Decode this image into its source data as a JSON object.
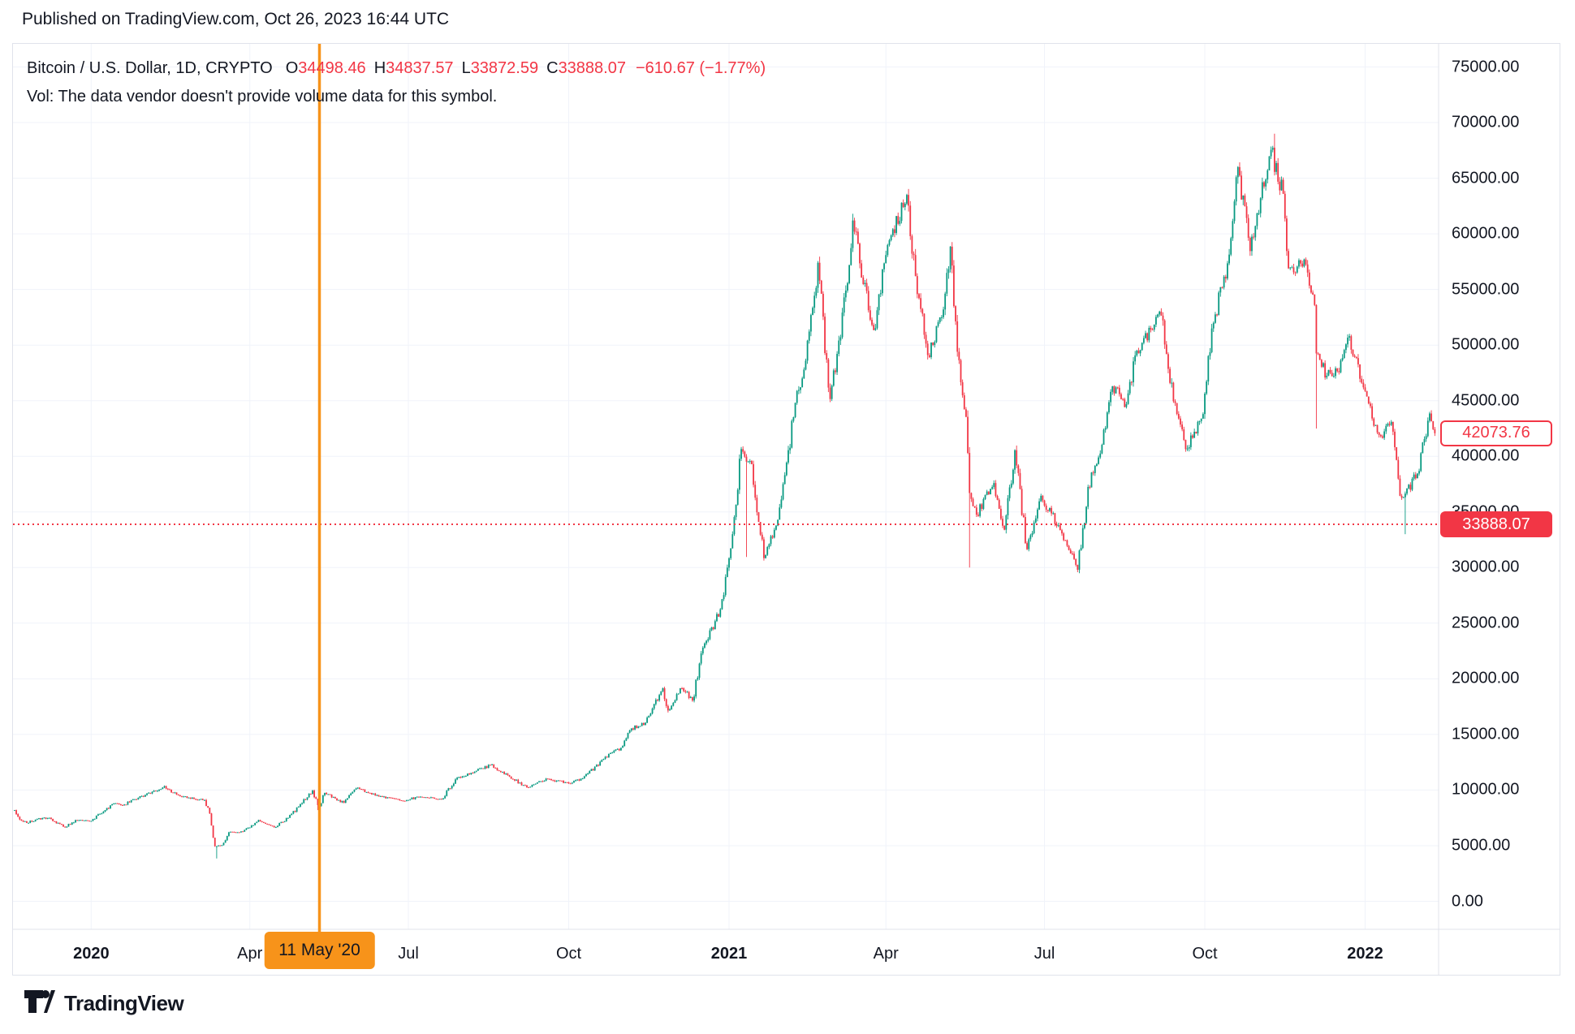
{
  "header": {
    "published": "Published on TradingView.com, Oct 26, 2023 16:44 UTC"
  },
  "legend": {
    "symbol": "Bitcoin / U.S. Dollar, 1D, CRYPTO",
    "open_label": "O",
    "open_value": "34498.46",
    "high_label": "H",
    "high_value": "34837.57",
    "low_label": "L",
    "low_value": "33872.59",
    "close_label": "C",
    "close_value": "33888.07",
    "change_text": "−610.67 (−1.77%)",
    "vol_note": "Vol: The data vendor doesn't provide volume data for this symbol."
  },
  "price_axis": {
    "min": 0,
    "max": 75000,
    "step": 5000,
    "decimals": 2,
    "last_price_label": "33888.07",
    "counter_price_label": "42073.76"
  },
  "time_axis": {
    "ticks": [
      {
        "label": "2020",
        "date": "2020-01-01",
        "bold": true
      },
      {
        "label": "Apr",
        "date": "2020-04-01",
        "bold": false
      },
      {
        "label": "Jul",
        "date": "2020-07-01",
        "bold": false
      },
      {
        "label": "Oct",
        "date": "2020-10-01",
        "bold": false
      },
      {
        "label": "2021",
        "date": "2021-01-01",
        "bold": true
      },
      {
        "label": "Apr",
        "date": "2021-04-01",
        "bold": false
      },
      {
        "label": "Jul",
        "date": "2021-07-01",
        "bold": false
      },
      {
        "label": "Oct",
        "date": "2021-10-01",
        "bold": false
      },
      {
        "label": "2022",
        "date": "2022-01-01",
        "bold": true
      }
    ],
    "event_marker": {
      "label": "11 May '20",
      "date": "2020-05-11"
    }
  },
  "chart_data": {
    "type": "candlestick",
    "title": "Bitcoin / U.S. Dollar",
    "timeframe": "1D",
    "ylim": [
      0,
      75000
    ],
    "grid": true,
    "last_price_line": 33888.07,
    "counter_price": 42073.76,
    "anchors": [
      [
        "2019-11-18",
        8200
      ],
      [
        "2019-11-22",
        7250
      ],
      [
        "2019-11-25",
        7050
      ],
      [
        "2019-12-01",
        7400
      ],
      [
        "2019-12-08",
        7500
      ],
      [
        "2019-12-17",
        6650
      ],
      [
        "2019-12-23",
        7300
      ],
      [
        "2019-12-31",
        7200
      ],
      [
        "2020-01-08",
        8050
      ],
      [
        "2020-01-14",
        8800
      ],
      [
        "2020-01-19",
        8650
      ],
      [
        "2020-01-28",
        9300
      ],
      [
        "2020-02-12",
        10350
      ],
      [
        "2020-02-19",
        9600
      ],
      [
        "2020-02-25",
        9300
      ],
      [
        "2020-03-06",
        9100
      ],
      [
        "2020-03-09",
        7900
      ],
      [
        "2020-03-12",
        4950
      ],
      [
        "2020-03-16",
        5050
      ],
      [
        "2020-03-20",
        6200
      ],
      [
        "2020-03-28",
        6250
      ],
      [
        "2020-04-06",
        7300
      ],
      [
        "2020-04-15",
        6650
      ],
      [
        "2020-04-23",
        7500
      ],
      [
        "2020-04-30",
        8750
      ],
      [
        "2020-05-07",
        9950
      ],
      [
        "2020-05-10",
        8650
      ],
      [
        "2020-05-11",
        8550
      ],
      [
        "2020-05-14",
        9750
      ],
      [
        "2020-05-25",
        8850
      ],
      [
        "2020-06-01",
        10150
      ],
      [
        "2020-06-15",
        9450
      ],
      [
        "2020-06-27",
        9050
      ],
      [
        "2020-07-08",
        9400
      ],
      [
        "2020-07-20",
        9150
      ],
      [
        "2020-07-28",
        10950
      ],
      [
        "2020-08-08",
        11650
      ],
      [
        "2020-08-17",
        12250
      ],
      [
        "2020-08-27",
        11350
      ],
      [
        "2020-09-07",
        10250
      ],
      [
        "2020-09-19",
        11000
      ],
      [
        "2020-10-01",
        10600
      ],
      [
        "2020-10-09",
        11050
      ],
      [
        "2020-10-21",
        12800
      ],
      [
        "2020-10-31",
        13800
      ],
      [
        "2020-11-06",
        15550
      ],
      [
        "2020-11-14",
        16050
      ],
      [
        "2020-11-24",
        19150
      ],
      [
        "2020-11-27",
        17150
      ],
      [
        "2020-12-05",
        19150
      ],
      [
        "2020-12-11",
        18050
      ],
      [
        "2020-12-17",
        22800
      ],
      [
        "2020-12-27",
        26250
      ],
      [
        "2021-01-03",
        33000
      ],
      [
        "2021-01-08",
        40650
      ],
      [
        "2021-01-14",
        39300
      ],
      [
        "2021-01-21",
        30850
      ],
      [
        "2021-01-29",
        34300
      ],
      [
        "2021-02-08",
        44800
      ],
      [
        "2021-02-14",
        48600
      ],
      [
        "2021-02-21",
        57400
      ],
      [
        "2021-02-28",
        45150
      ],
      [
        "2021-03-09",
        54900
      ],
      [
        "2021-03-13",
        61200
      ],
      [
        "2021-03-25",
        51350
      ],
      [
        "2021-04-02",
        59000
      ],
      [
        "2021-04-13",
        63500
      ],
      [
        "2021-04-18",
        56200
      ],
      [
        "2021-04-25",
        49100
      ],
      [
        "2021-05-04",
        53200
      ],
      [
        "2021-05-08",
        58850
      ],
      [
        "2021-05-12",
        49400
      ],
      [
        "2021-05-17",
        43550
      ],
      [
        "2021-05-19",
        36700
      ],
      [
        "2021-05-23",
        34750
      ],
      [
        "2021-06-02",
        37600
      ],
      [
        "2021-06-08",
        33400
      ],
      [
        "2021-06-14",
        40550
      ],
      [
        "2021-06-21",
        31650
      ],
      [
        "2021-06-29",
        36450
      ],
      [
        "2021-07-09",
        33800
      ],
      [
        "2021-07-20",
        29800
      ],
      [
        "2021-07-26",
        37250
      ],
      [
        "2021-08-01",
        39900
      ],
      [
        "2021-08-09",
        46300
      ],
      [
        "2021-08-17",
        44700
      ],
      [
        "2021-08-23",
        49500
      ],
      [
        "2021-09-06",
        52650
      ],
      [
        "2021-09-13",
        44950
      ],
      [
        "2021-09-21",
        40700
      ],
      [
        "2021-09-30",
        43800
      ],
      [
        "2021-10-05",
        51500
      ],
      [
        "2021-10-14",
        57350
      ],
      [
        "2021-10-20",
        66000
      ],
      [
        "2021-10-27",
        58450
      ],
      [
        "2021-11-02",
        63200
      ],
      [
        "2021-11-08",
        67550
      ],
      [
        "2021-11-15",
        63600
      ],
      [
        "2021-11-18",
        56900
      ],
      [
        "2021-11-28",
        57250
      ],
      [
        "2021-12-03",
        53600
      ],
      [
        "2021-12-04",
        49250
      ],
      [
        "2021-12-10",
        47250
      ],
      [
        "2021-12-16",
        47650
      ],
      [
        "2021-12-23",
        50800
      ],
      [
        "2021-12-31",
        46200
      ],
      [
        "2022-01-05",
        43400
      ],
      [
        "2022-01-10",
        41800
      ],
      [
        "2022-01-16",
        43100
      ],
      [
        "2022-01-21",
        36450
      ],
      [
        "2022-01-24",
        36650
      ],
      [
        "2022-01-31",
        38450
      ],
      [
        "2022-02-04",
        41550
      ],
      [
        "2022-02-07",
        43850
      ],
      [
        "2022-02-10",
        42073.76
      ]
    ],
    "wick_events": [
      {
        "date": "2020-03-13",
        "low": 3850
      },
      {
        "date": "2020-05-10",
        "low": 8200
      },
      {
        "date": "2021-01-11",
        "low": 30950
      },
      {
        "date": "2021-05-19",
        "low": 30000
      },
      {
        "date": "2021-11-10",
        "high": 69000
      },
      {
        "date": "2021-12-04",
        "low": 42500
      },
      {
        "date": "2022-01-24",
        "low": 33000
      }
    ],
    "colors": {
      "up": "#089981",
      "down": "#F23645",
      "grid": "#F0F3FA",
      "border": "#E0E3EB",
      "event": "#F7931A",
      "last_line": "#F23645",
      "text": "#131722"
    }
  },
  "footer": {
    "brand": "TradingView"
  }
}
